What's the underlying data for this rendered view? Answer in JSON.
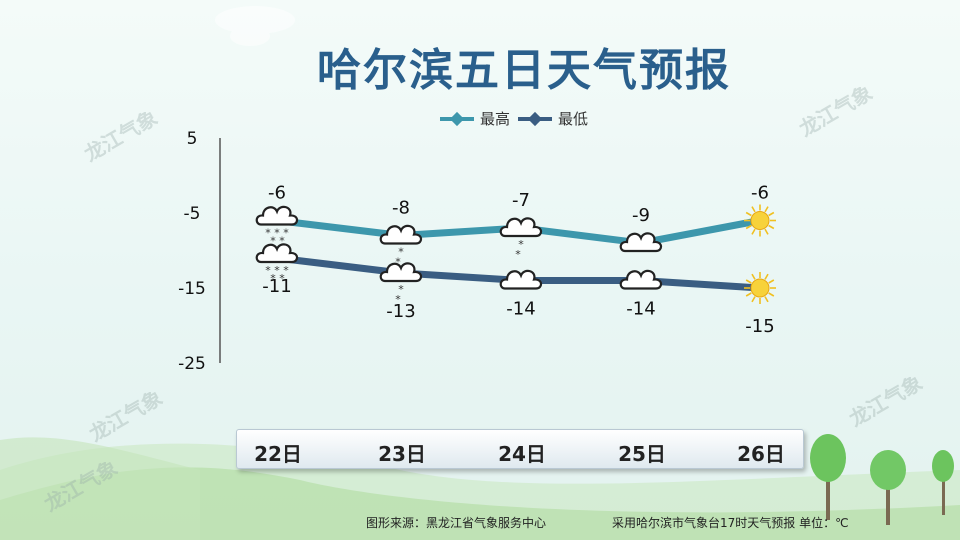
{
  "title": "哈尔滨五日天气预报",
  "legend": {
    "high": "最高",
    "low": "最低"
  },
  "colors": {
    "high": "#3d97ac",
    "low": "#3a5d82",
    "title": "#2a5f8c"
  },
  "watermark": "龙江气象",
  "footer": {
    "source": "图形来源：黑龙江省气象服务中心",
    "note": "采用哈尔滨市气象台17时天气预报 单位：℃"
  },
  "chart_data": {
    "type": "line",
    "categories": [
      "22日",
      "23日",
      "24日",
      "25日",
      "26日"
    ],
    "series": [
      {
        "name": "最高",
        "values": [
          -6,
          -8,
          -7,
          -9,
          -6
        ],
        "icons": [
          "cloud-snow-heavy-icon",
          "cloud-snow-light-icon",
          "cloud-snow-light-icon",
          "cloud-icon",
          "sun-icon"
        ]
      },
      {
        "name": "最低",
        "values": [
          -11,
          -13,
          -14,
          -14,
          -15
        ],
        "icons": [
          "cloud-snow-heavy-icon",
          "cloud-snow-light-icon",
          "cloud-icon",
          "cloud-icon",
          "sun-icon"
        ]
      }
    ],
    "yticks": [
      5,
      -5,
      -15,
      -25
    ],
    "ylim": [
      -25,
      5
    ],
    "grid": false,
    "legend_position": "top-center"
  }
}
